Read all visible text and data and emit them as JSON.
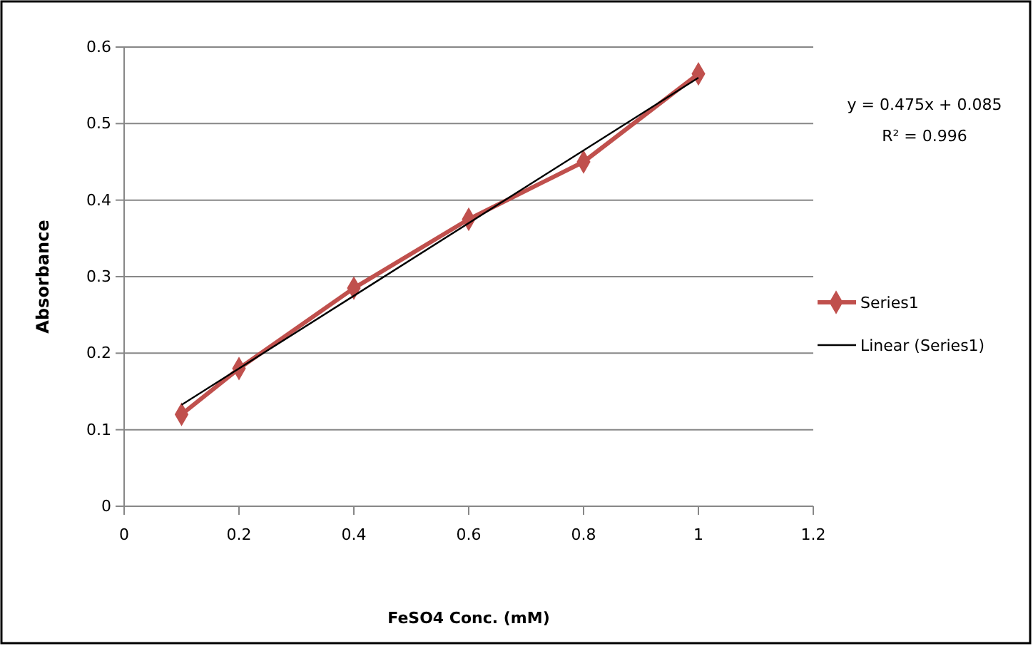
{
  "chart_data": {
    "type": "line",
    "xlabel": "FeSO4 Conc. (mM)",
    "ylabel": "Absorbance",
    "x": [
      0.1,
      0.2,
      0.4,
      0.6,
      0.8,
      1
    ],
    "series": [
      {
        "name": "Series1",
        "color": "#c0504d",
        "marker": "diamond",
        "values": [
          0.12,
          0.18,
          0.285,
          0.375,
          0.45,
          0.565
        ]
      },
      {
        "name": "Linear (Series1)",
        "type": "line",
        "color": "#000000",
        "marker": "none",
        "x": [
          0.1,
          1
        ],
        "values": [
          0.1325,
          0.56
        ]
      }
    ],
    "xlim": [
      0,
      1.2
    ],
    "xticks": [
      0,
      0.2,
      0.4,
      0.6,
      0.8,
      1,
      1.2
    ],
    "ylim": [
      0,
      0.6
    ],
    "yticks": [
      0,
      0.1,
      0.2,
      0.3,
      0.4,
      0.5,
      0.6
    ],
    "grid": "y",
    "legend": "right",
    "annotations": [
      "y = 0.475x + 0.085",
      "R² = 0.996"
    ]
  }
}
